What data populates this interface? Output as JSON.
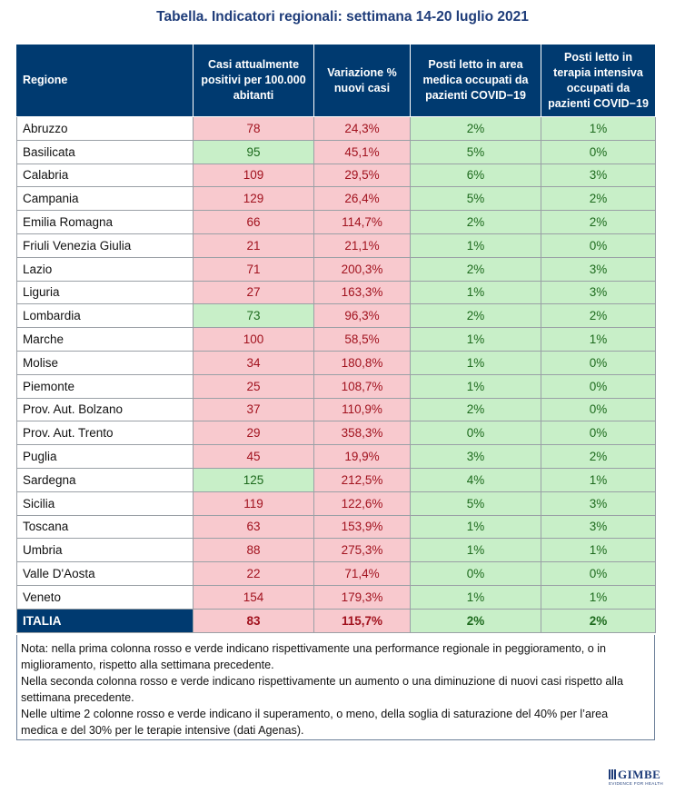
{
  "title": "Tabella. Indicatori regionali: settimana 14-20 luglio 2021",
  "headers": {
    "region": "Regione",
    "cases": "Casi attualmente positivi per 100.000 abitanti",
    "variation": "Variazione % nuovi casi",
    "medical": "Posti letto in area medica occupati da pazienti COVID−19",
    "icu": "Posti letto in terapia intensiva occupati da pazienti COVID−19"
  },
  "rows": [
    {
      "region": "Abruzzo",
      "cases": "78",
      "cases_status": "red",
      "variation": "24,3%",
      "variation_status": "red",
      "medical": "2%",
      "medical_status": "green",
      "icu": "1%",
      "icu_status": "green"
    },
    {
      "region": "Basilicata",
      "cases": "95",
      "cases_status": "green",
      "variation": "45,1%",
      "variation_status": "red",
      "medical": "5%",
      "medical_status": "green",
      "icu": "0%",
      "icu_status": "green"
    },
    {
      "region": "Calabria",
      "cases": "109",
      "cases_status": "red",
      "variation": "29,5%",
      "variation_status": "red",
      "medical": "6%",
      "medical_status": "green",
      "icu": "3%",
      "icu_status": "green"
    },
    {
      "region": "Campania",
      "cases": "129",
      "cases_status": "red",
      "variation": "26,4%",
      "variation_status": "red",
      "medical": "5%",
      "medical_status": "green",
      "icu": "2%",
      "icu_status": "green"
    },
    {
      "region": "Emilia Romagna",
      "cases": "66",
      "cases_status": "red",
      "variation": "114,7%",
      "variation_status": "red",
      "medical": "2%",
      "medical_status": "green",
      "icu": "2%",
      "icu_status": "green"
    },
    {
      "region": "Friuli Venezia Giulia",
      "cases": "21",
      "cases_status": "red",
      "variation": "21,1%",
      "variation_status": "red",
      "medical": "1%",
      "medical_status": "green",
      "icu": "0%",
      "icu_status": "green"
    },
    {
      "region": "Lazio",
      "cases": "71",
      "cases_status": "red",
      "variation": "200,3%",
      "variation_status": "red",
      "medical": "2%",
      "medical_status": "green",
      "icu": "3%",
      "icu_status": "green"
    },
    {
      "region": "Liguria",
      "cases": "27",
      "cases_status": "red",
      "variation": "163,3%",
      "variation_status": "red",
      "medical": "1%",
      "medical_status": "green",
      "icu": "3%",
      "icu_status": "green"
    },
    {
      "region": "Lombardia",
      "cases": "73",
      "cases_status": "green",
      "variation": "96,3%",
      "variation_status": "red",
      "medical": "2%",
      "medical_status": "green",
      "icu": "2%",
      "icu_status": "green"
    },
    {
      "region": "Marche",
      "cases": "100",
      "cases_status": "red",
      "variation": "58,5%",
      "variation_status": "red",
      "medical": "1%",
      "medical_status": "green",
      "icu": "1%",
      "icu_status": "green"
    },
    {
      "region": "Molise",
      "cases": "34",
      "cases_status": "red",
      "variation": "180,8%",
      "variation_status": "red",
      "medical": "1%",
      "medical_status": "green",
      "icu": "0%",
      "icu_status": "green"
    },
    {
      "region": "Piemonte",
      "cases": "25",
      "cases_status": "red",
      "variation": "108,7%",
      "variation_status": "red",
      "medical": "1%",
      "medical_status": "green",
      "icu": "0%",
      "icu_status": "green"
    },
    {
      "region": "Prov. Aut. Bolzano",
      "cases": "37",
      "cases_status": "red",
      "variation": "110,9%",
      "variation_status": "red",
      "medical": "2%",
      "medical_status": "green",
      "icu": "0%",
      "icu_status": "green"
    },
    {
      "region": "Prov. Aut. Trento",
      "cases": "29",
      "cases_status": "red",
      "variation": "358,3%",
      "variation_status": "red",
      "medical": "0%",
      "medical_status": "green",
      "icu": "0%",
      "icu_status": "green"
    },
    {
      "region": "Puglia",
      "cases": "45",
      "cases_status": "red",
      "variation": "19,9%",
      "variation_status": "red",
      "medical": "3%",
      "medical_status": "green",
      "icu": "2%",
      "icu_status": "green"
    },
    {
      "region": "Sardegna",
      "cases": "125",
      "cases_status": "green",
      "variation": "212,5%",
      "variation_status": "red",
      "medical": "4%",
      "medical_status": "green",
      "icu": "1%",
      "icu_status": "green"
    },
    {
      "region": "Sicilia",
      "cases": "119",
      "cases_status": "red",
      "variation": "122,6%",
      "variation_status": "red",
      "medical": "5%",
      "medical_status": "green",
      "icu": "3%",
      "icu_status": "green"
    },
    {
      "region": "Toscana",
      "cases": "63",
      "cases_status": "red",
      "variation": "153,9%",
      "variation_status": "red",
      "medical": "1%",
      "medical_status": "green",
      "icu": "3%",
      "icu_status": "green"
    },
    {
      "region": "Umbria",
      "cases": "88",
      "cases_status": "red",
      "variation": "275,3%",
      "variation_status": "red",
      "medical": "1%",
      "medical_status": "green",
      "icu": "1%",
      "icu_status": "green"
    },
    {
      "region": "Valle D'Aosta",
      "cases": "22",
      "cases_status": "red",
      "variation": "71,4%",
      "variation_status": "red",
      "medical": "0%",
      "medical_status": "green",
      "icu": "0%",
      "icu_status": "green"
    },
    {
      "region": "Veneto",
      "cases": "154",
      "cases_status": "red",
      "variation": "179,3%",
      "variation_status": "red",
      "medical": "1%",
      "medical_status": "green",
      "icu": "1%",
      "icu_status": "green"
    }
  ],
  "total": {
    "region": "ITALIA",
    "cases": "83",
    "cases_status": "red",
    "variation": "115,7%",
    "variation_status": "red",
    "medical": "2%",
    "medical_status": "green",
    "icu": "2%",
    "icu_status": "green"
  },
  "notes": [
    "Nota: nella prima colonna rosso e verde indicano rispettivamente una performance regionale in peggioramento, o in miglioramento, rispetto alla settimana precedente.",
    "Nella seconda colonna rosso e verde indicano rispettivamente un aumento o una diminuzione di nuovi casi rispetto alla settimana precedente.",
    "Nelle ultime 2 colonne rosso e verde indicano il superamento, o meno, della soglia di saturazione del 40% per l’area medica e del 30% per le terapie intensive (dati Agenas)."
  ],
  "colors": {
    "header_bg": "#003a70",
    "red_bg": "#f8c9ce",
    "red_text": "#a1121e",
    "green_bg": "#c8efc8",
    "green_text": "#1d6a1d"
  },
  "logo": {
    "text": "GIMBE",
    "tagline": "EVIDENCE FOR HEALTH"
  }
}
